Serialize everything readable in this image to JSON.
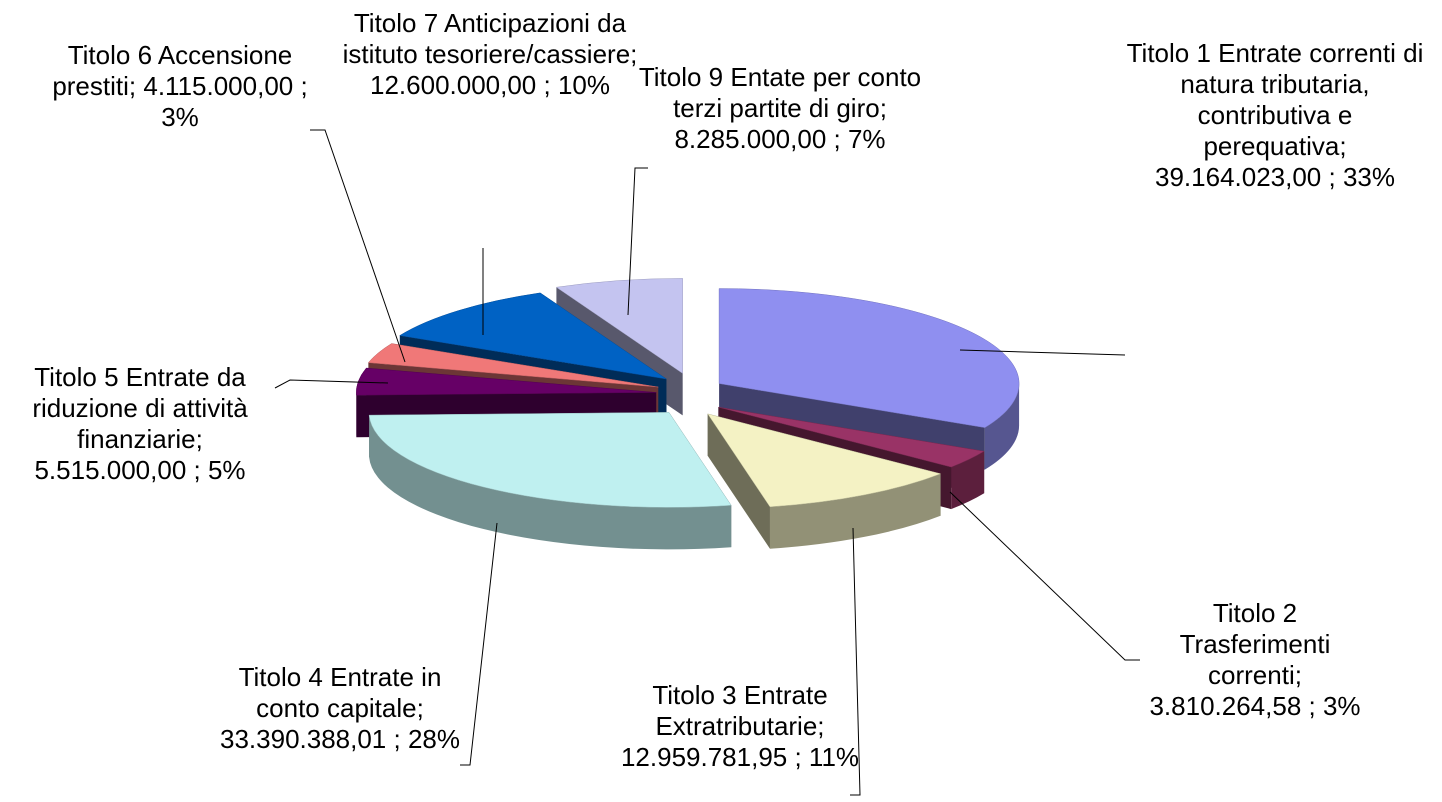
{
  "chart_data": {
    "type": "pie3d",
    "categories": [
      "Titolo 1 Entrate correnti di natura tributaria, contributiva e perequativa;",
      "Titolo 2 Trasferimenti correnti;",
      "Titolo 3 Entrate Extratributarie;",
      "Titolo 4 Entrate in conto capitale;",
      "Titolo 5 Entrate da riduzione di attività finanziarie;",
      "Titolo 6 Accensione prestiti;",
      "Titolo 7 Anticipazioni da istituto tesoriere/cassiere;",
      "Titolo 9 Entate per conto terzi partite di giro;"
    ],
    "values": [
      39164023.0,
      3810264.58,
      12959781.95,
      33390388.01,
      5515000.0,
      4115000.0,
      12600000.0,
      8285000.0
    ],
    "value_labels": [
      "39.164.023,00 ; 33%",
      "3.810.264,58 ; 3%",
      "12.959.781,95 ; 11%",
      "33.390.388,01 ; 28%",
      "5.515.000,00 ; 5%",
      "4.115.000,00 ; 3%",
      "12.600.000,00 ; 10%",
      "8.285.000,00 ; 7%"
    ],
    "colors": [
      "#8f8ff0",
      "#993366",
      "#f4f2c4",
      "#bff0f0",
      "#660066",
      "#f07878",
      "#0062c4",
      "#c4c4f0"
    ]
  }
}
